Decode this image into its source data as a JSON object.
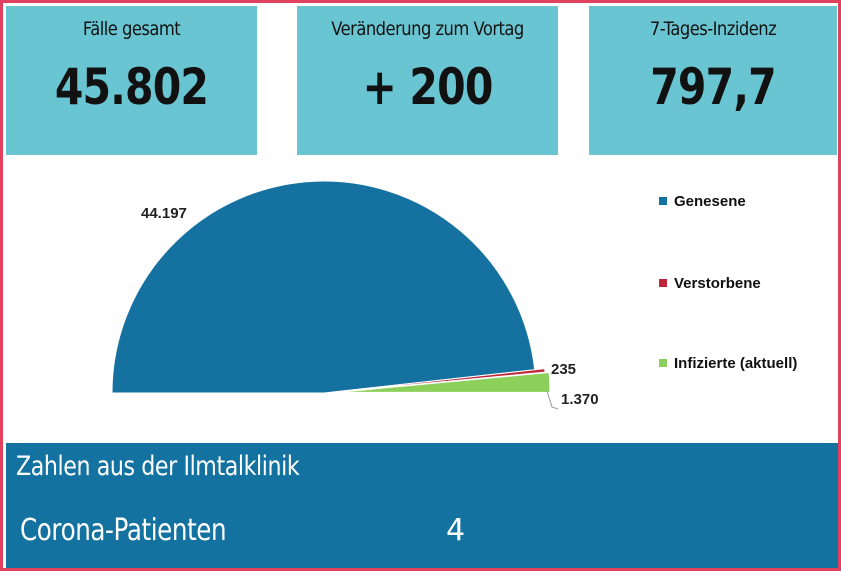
{
  "tiles": {
    "total": {
      "label": "Fälle gesamt",
      "value": "45.802"
    },
    "change": {
      "label": "Veränderung zum Vortag",
      "value": "+ 200"
    },
    "incidence": {
      "label": "7-Tages-Inzidenz",
      "value": "797,7"
    }
  },
  "chart_data": {
    "type": "pie",
    "subtype": "half-pie",
    "categories": [
      "Genesene",
      "Verstorbene",
      "Infizierte (aktuell)"
    ],
    "values": [
      44197,
      235,
      1370
    ],
    "data_labels": [
      "44.197",
      "235",
      "1.370"
    ],
    "colors": [
      "#1572a0",
      "#c0263a",
      "#8ccf5a"
    ],
    "legend_position": "right",
    "title": ""
  },
  "bottom": {
    "title": "Zahlen aus der Ilmtalklinik",
    "label": "Corona-Patienten",
    "value": "4"
  },
  "colors": {
    "frame_border": "#e0415f",
    "tile_background": "#6ac5d3",
    "bottom_background": "#1472a0"
  }
}
